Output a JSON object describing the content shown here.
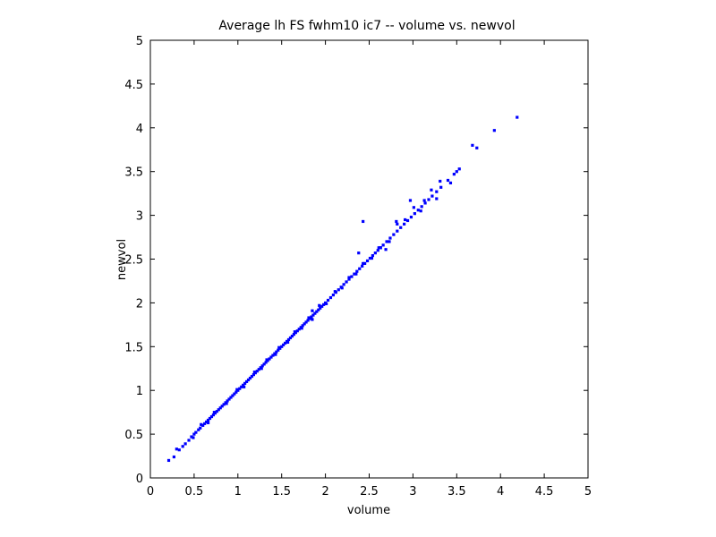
{
  "chart_data": {
    "type": "scatter",
    "title": "Average lh FS fwhm10 ic7 -- volume vs. newvol",
    "xlabel": "volume",
    "ylabel": "newvol",
    "xlim": [
      0,
      5
    ],
    "ylim": [
      0,
      5
    ],
    "xticks": [
      "0",
      "0.5",
      "1",
      "1.5",
      "2",
      "2.5",
      "3",
      "3.5",
      "4",
      "4.5",
      "5"
    ],
    "yticks": [
      "0",
      "0.5",
      "1",
      "1.5",
      "2",
      "2.5",
      "3",
      "3.5",
      "4",
      "4.5",
      "5"
    ],
    "grid": false,
    "marker_color": "#0000ff",
    "series": [
      {
        "x": [
          0.21,
          0.27,
          0.33,
          0.37,
          0.4,
          0.44,
          0.47,
          0.5,
          0.52,
          0.55,
          0.57,
          0.6,
          0.62,
          0.64,
          0.66,
          0.68,
          0.7,
          0.72,
          0.74,
          0.76,
          0.78,
          0.8,
          0.82,
          0.84,
          0.86,
          0.88,
          0.9,
          0.92,
          0.94,
          0.96,
          0.98,
          1.0,
          1.02,
          1.04,
          1.06,
          1.08,
          1.1,
          1.12,
          1.14,
          1.16,
          1.18,
          1.2,
          1.22,
          1.24,
          1.26,
          1.28,
          1.3,
          1.32,
          1.34,
          1.36,
          1.38,
          1.4,
          1.42,
          1.44,
          1.46,
          1.48,
          1.5,
          1.52,
          1.54,
          1.56,
          1.58,
          1.6,
          1.62,
          1.64,
          1.66,
          1.68,
          1.7,
          1.72,
          1.74,
          1.76,
          1.78,
          1.8,
          1.82,
          1.84,
          1.86,
          1.88,
          1.9,
          1.92,
          1.94,
          1.96,
          1.98,
          2.0,
          2.03,
          2.06,
          2.09,
          2.12,
          2.15,
          2.18,
          2.21,
          2.24,
          2.27,
          2.3,
          2.33,
          2.36,
          2.39,
          2.42,
          2.45,
          2.48,
          2.51,
          2.54,
          2.57,
          2.6,
          2.63,
          2.66,
          2.7,
          2.74,
          2.78,
          2.82,
          2.86,
          2.9,
          2.94,
          2.98,
          3.02,
          3.06,
          3.1,
          3.14,
          3.18,
          3.22,
          3.27,
          3.32,
          3.4,
          3.47,
          3.53,
          3.68,
          3.73,
          3.93,
          4.19,
          0.3,
          0.49,
          0.58,
          0.66,
          0.73,
          0.87,
          0.99,
          1.07,
          1.19,
          1.27,
          1.33,
          1.43,
          1.47,
          1.57,
          1.65,
          1.73,
          1.81,
          1.85,
          1.93,
          2.01,
          2.11,
          2.19,
          2.27,
          2.35,
          2.43,
          2.53,
          2.61,
          2.69,
          2.81,
          2.91,
          3.01,
          3.09,
          3.21,
          3.31,
          1.85,
          2.38,
          2.43,
          2.63,
          2.73,
          2.82,
          2.97,
          3.13,
          3.27,
          3.43,
          3.5
        ],
        "y": [
          0.2,
          0.24,
          0.32,
          0.36,
          0.39,
          0.43,
          0.47,
          0.5,
          0.52,
          0.55,
          0.57,
          0.6,
          0.62,
          0.64,
          0.66,
          0.68,
          0.7,
          0.72,
          0.74,
          0.76,
          0.78,
          0.8,
          0.82,
          0.84,
          0.86,
          0.88,
          0.9,
          0.92,
          0.94,
          0.96,
          0.98,
          1.0,
          1.02,
          1.04,
          1.06,
          1.08,
          1.1,
          1.12,
          1.14,
          1.16,
          1.18,
          1.2,
          1.22,
          1.24,
          1.26,
          1.28,
          1.3,
          1.32,
          1.34,
          1.36,
          1.38,
          1.4,
          1.42,
          1.44,
          1.46,
          1.48,
          1.5,
          1.52,
          1.54,
          1.56,
          1.58,
          1.6,
          1.62,
          1.64,
          1.66,
          1.68,
          1.7,
          1.72,
          1.74,
          1.76,
          1.78,
          1.8,
          1.82,
          1.84,
          1.86,
          1.88,
          1.9,
          1.92,
          1.94,
          1.96,
          1.98,
          2.0,
          2.03,
          2.06,
          2.09,
          2.12,
          2.15,
          2.18,
          2.21,
          2.24,
          2.27,
          2.3,
          2.33,
          2.36,
          2.39,
          2.42,
          2.45,
          2.48,
          2.51,
          2.54,
          2.57,
          2.6,
          2.63,
          2.66,
          2.7,
          2.74,
          2.78,
          2.82,
          2.86,
          2.9,
          2.94,
          2.98,
          3.02,
          3.06,
          3.1,
          3.14,
          3.18,
          3.22,
          3.27,
          3.32,
          3.4,
          3.47,
          3.53,
          3.8,
          3.77,
          3.97,
          4.12,
          0.33,
          0.46,
          0.61,
          0.63,
          0.75,
          0.85,
          1.01,
          1.04,
          1.21,
          1.25,
          1.35,
          1.41,
          1.49,
          1.55,
          1.67,
          1.71,
          1.83,
          1.81,
          1.97,
          1.99,
          2.13,
          2.17,
          2.29,
          2.33,
          2.45,
          2.51,
          2.63,
          2.61,
          2.93,
          2.95,
          3.09,
          3.05,
          3.29,
          3.39,
          1.91,
          2.57,
          2.93,
          2.63,
          2.7,
          2.9,
          3.17,
          3.17,
          3.19,
          3.37,
          3.5
        ]
      }
    ]
  }
}
